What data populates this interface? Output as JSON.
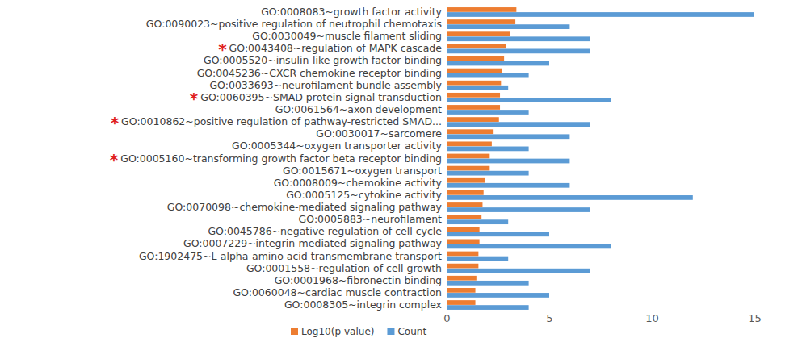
{
  "chart_data": {
    "type": "bar",
    "orientation": "horizontal",
    "categories": [
      "GO:0008083~growth factor activity",
      "GO:0090023~positive regulation of neutrophil chemotaxis",
      "GO:0030049~muscle filament sliding",
      "GO:0043408~regulation of MAPK cascade",
      "GO:0005520~insulin-like growth factor binding",
      "GO:0045236~CXCR chemokine receptor binding",
      "GO:0033693~neurofilament bundle assembly",
      "GO:0060395~SMAD protein signal transduction",
      "GO:0061564~axon development",
      "GO:0010862~positive regulation of pathway-restricted SMAD...",
      "GO:0030017~sarcomere",
      "GO:0005344~oxygen transporter activity",
      "GO:0005160~transforming growth factor beta receptor binding",
      "GO:0015671~oxygen transport",
      "GO:0008009~chemokine activity",
      "GO:0005125~cytokine activity",
      "GO:0070098~chemokine-mediated signaling pathway",
      "GO:0005883~neurofilament",
      "GO:0045786~negative regulation of cell cycle",
      "GO:0007229~integrin-mediated signaling pathway",
      "GO:1902475~L-alpha-amino acid transmembrane transport",
      "GO:0001558~regulation of cell growth",
      "GO:0001968~fibronectin binding",
      "GO:0060048~cardiac muscle contraction",
      "GO:0008305~integrin complex"
    ],
    "series": [
      {
        "name": "Log10(p-value)",
        "color": "#ed7d31",
        "values": [
          3.4,
          3.35,
          3.1,
          2.9,
          2.8,
          2.7,
          2.65,
          2.6,
          2.6,
          2.55,
          2.25,
          2.2,
          2.1,
          2.1,
          1.85,
          1.8,
          1.75,
          1.7,
          1.6,
          1.6,
          1.55,
          1.55,
          1.45,
          1.4,
          1.4
        ]
      },
      {
        "name": "Count",
        "color": "#5b9bd5",
        "values": [
          15,
          6,
          7,
          7,
          5,
          4,
          3,
          8,
          4,
          7,
          6,
          4,
          6,
          4,
          6,
          12,
          7,
          3,
          5,
          8,
          3,
          7,
          4,
          5,
          4
        ]
      }
    ],
    "xlim": [
      0,
      15
    ],
    "xticks": [
      0,
      5,
      10,
      15
    ],
    "grid": false,
    "legend": "bottom",
    "annotations": [
      {
        "text": "*",
        "category": "GO:0043408~regulation of MAPK cascade",
        "color": "#e02020"
      },
      {
        "text": "*",
        "category": "GO:0060395~SMAD protein signal transduction",
        "color": "#e02020"
      },
      {
        "text": "*",
        "category": "GO:0010862~positive regulation of pathway-restricted SMAD...",
        "color": "#e02020"
      },
      {
        "text": "*",
        "category": "GO:0005160~transforming growth factor beta receptor binding",
        "color": "#e02020"
      }
    ]
  }
}
